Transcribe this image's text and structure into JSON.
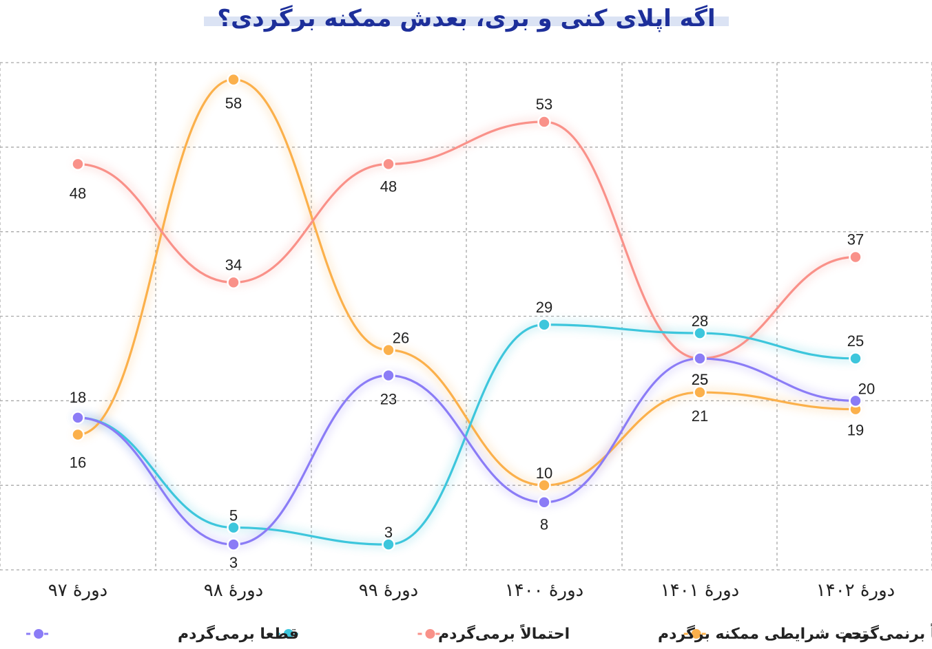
{
  "chart_data": {
    "type": "line",
    "title": "اگه اپلای کنی و بری، بعدش ممکنه برگردی؟",
    "categories": [
      "دورهٔ ۹۷",
      "دورهٔ ۹۸",
      "دورهٔ ۹۹",
      "دورهٔ ۱۴۰۰",
      "دورهٔ ۱۴۰۱",
      "دورهٔ ۱۴۰۲"
    ],
    "ylim": [
      0,
      60
    ],
    "grid": true,
    "legend_position": "bottom",
    "series": [
      {
        "name": "قطعاً برنمی‌گردم",
        "color": "#fbb04b",
        "values": [
          16,
          58,
          26,
          10,
          21,
          19
        ]
      },
      {
        "name": "تحت شرایطی ممکنه برگردم",
        "color": "#f99189",
        "values": [
          48,
          34,
          48,
          53,
          25,
          37
        ]
      },
      {
        "name": "احتمالاً برمی‌گردم",
        "color": "#3dc6dc",
        "values": [
          18,
          5,
          3,
          29,
          28,
          25
        ]
      },
      {
        "name": "قطعا برمی‌گردم",
        "color": "#8b7cf6",
        "values": [
          18,
          3,
          23,
          8,
          25,
          20
        ]
      }
    ]
  }
}
